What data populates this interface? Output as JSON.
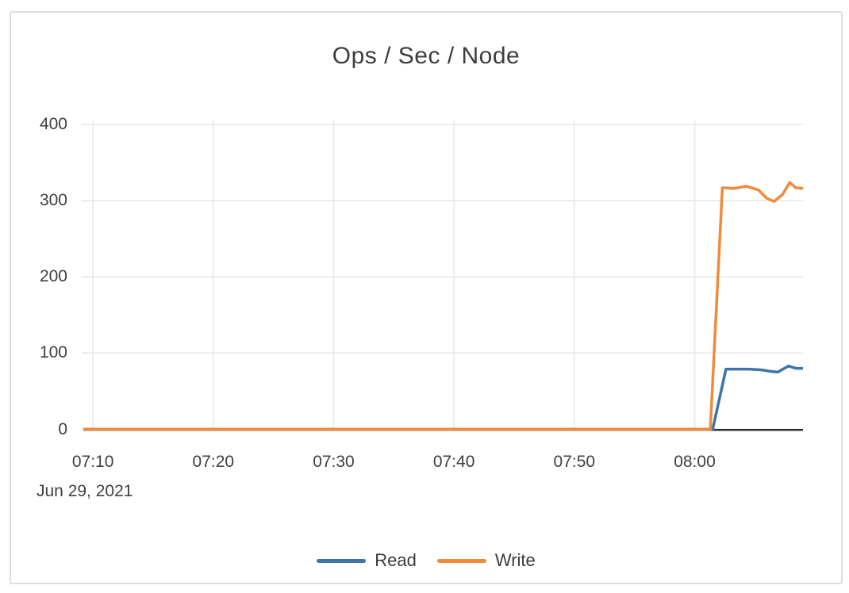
{
  "chart_data": {
    "type": "line",
    "title": "Ops / Sec / Node",
    "x_axis": {
      "date_label": "Jun 29, 2021",
      "unit": "time (HH:MM), minutes-since-midnight used for point x",
      "range_minutes": [
        429.2,
        489.0
      ],
      "ticks": [
        {
          "label": "07:10",
          "minute": 430
        },
        {
          "label": "07:20",
          "minute": 440
        },
        {
          "label": "07:30",
          "minute": 450
        },
        {
          "label": "07:40",
          "minute": 460
        },
        {
          "label": "07:50",
          "minute": 470
        },
        {
          "label": "08:00",
          "minute": 480
        }
      ]
    },
    "y_axis": {
      "label": "",
      "range": [
        0,
        400
      ],
      "grid": true,
      "ticks": [
        {
          "label": "0",
          "value": 0
        },
        {
          "label": "100",
          "value": 100
        },
        {
          "label": "200",
          "value": 200
        },
        {
          "label": "300",
          "value": 300
        },
        {
          "label": "400",
          "value": 400
        }
      ]
    },
    "series": [
      {
        "name": "Read",
        "color": "#3e74a8",
        "points": [
          [
            429.2,
            0
          ],
          [
            440,
            0
          ],
          [
            455,
            0
          ],
          [
            470,
            0
          ],
          [
            481.5,
            0
          ],
          [
            482.6,
            79
          ],
          [
            483.5,
            79
          ],
          [
            484.5,
            79
          ],
          [
            485.5,
            78
          ],
          [
            486.3,
            76
          ],
          [
            486.9,
            75
          ],
          [
            487.8,
            83
          ],
          [
            488.4,
            80
          ],
          [
            489.0,
            80
          ]
        ]
      },
      {
        "name": "Write",
        "color": "#ef8b3b",
        "points": [
          [
            429.2,
            0
          ],
          [
            440,
            0
          ],
          [
            455,
            0
          ],
          [
            470,
            0
          ],
          [
            481.3,
            0
          ],
          [
            482.3,
            317
          ],
          [
            483.3,
            316
          ],
          [
            484.3,
            319
          ],
          [
            485.3,
            314
          ],
          [
            486.0,
            303
          ],
          [
            486.6,
            299
          ],
          [
            487.3,
            308
          ],
          [
            487.9,
            324
          ],
          [
            488.4,
            317
          ],
          [
            489.0,
            316
          ]
        ]
      }
    ],
    "legend": {
      "position": "bottom",
      "entries": [
        {
          "label": "Read",
          "color": "#3e74a8"
        },
        {
          "label": "Write",
          "color": "#ef8b3b"
        }
      ]
    }
  },
  "colors": {
    "grid": "#ececec",
    "axis": "#2e2e2e",
    "panel_border": "#dedede",
    "text": "#3f3f3f",
    "background": "#ffffff"
  }
}
